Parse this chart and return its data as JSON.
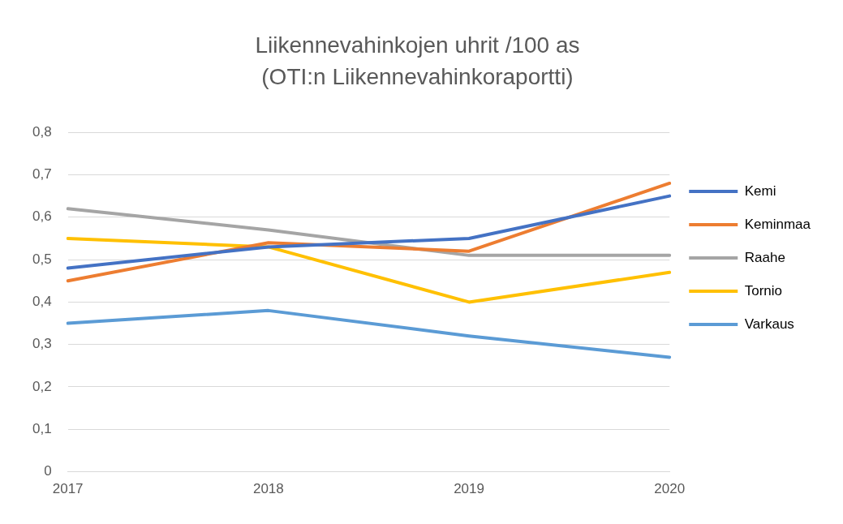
{
  "chart_data": {
    "type": "line",
    "title": "Liikennevahinkojen uhrit /100 as",
    "subtitle": "(OTI:n Liikennevahinkoraportti)",
    "categories": [
      "2017",
      "2018",
      "2019",
      "2020"
    ],
    "series": [
      {
        "name": "Kemi",
        "color": "#4472c4",
        "values": [
          0.48,
          0.53,
          0.55,
          0.65
        ]
      },
      {
        "name": "Keminmaa",
        "color": "#ed7d31",
        "values": [
          0.45,
          0.54,
          0.52,
          0.68
        ]
      },
      {
        "name": "Raahe",
        "color": "#a5a5a5",
        "values": [
          0.62,
          0.57,
          0.51,
          0.51
        ]
      },
      {
        "name": "Tornio",
        "color": "#ffc000",
        "values": [
          0.55,
          0.53,
          0.4,
          0.47
        ]
      },
      {
        "name": "Varkaus",
        "color": "#5b9bd5",
        "values": [
          0.35,
          0.38,
          0.32,
          0.27
        ]
      }
    ],
    "ylim": [
      0,
      0.8
    ],
    "yticks": [
      0,
      {
        "value": 0.1,
        "label": "0,1"
      },
      {
        "value": 0.2,
        "label": "0,2"
      },
      {
        "value": 0.3,
        "label": "0,3"
      },
      {
        "value": 0.4,
        "label": "0,4"
      },
      {
        "value": 0.5,
        "label": "0,5"
      },
      {
        "value": 0.6,
        "label": "0,6"
      },
      {
        "value": 0.7,
        "label": "0,7"
      },
      {
        "value": 0.8,
        "label": "0,8"
      }
    ],
    "grid": "y",
    "legend": "right",
    "marker": "none",
    "line_style": "solid"
  }
}
